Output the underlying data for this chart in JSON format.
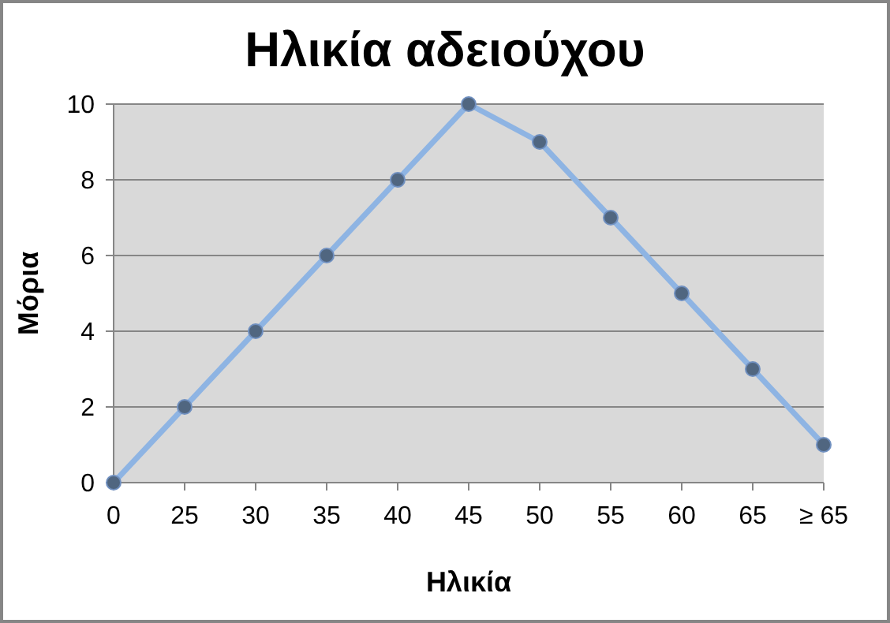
{
  "chart_data": {
    "type": "line",
    "title": "Ηλικία αδειούχου",
    "xlabel": "Ηλικία",
    "ylabel": "Μόρια",
    "categories": [
      "0",
      "25",
      "30",
      "35",
      "40",
      "45",
      "50",
      "55",
      "60",
      "65",
      "≥ 65"
    ],
    "series": [
      {
        "color": "#8eb4e3",
        "values": [
          0,
          2,
          4,
          6,
          8,
          10,
          9,
          7,
          5,
          3,
          1
        ]
      }
    ],
    "ylim": [
      0,
      10
    ],
    "yticks": [
      0,
      2,
      4,
      6,
      8,
      10
    ],
    "grid": "y",
    "marker": "circle",
    "line_style": "solid"
  }
}
